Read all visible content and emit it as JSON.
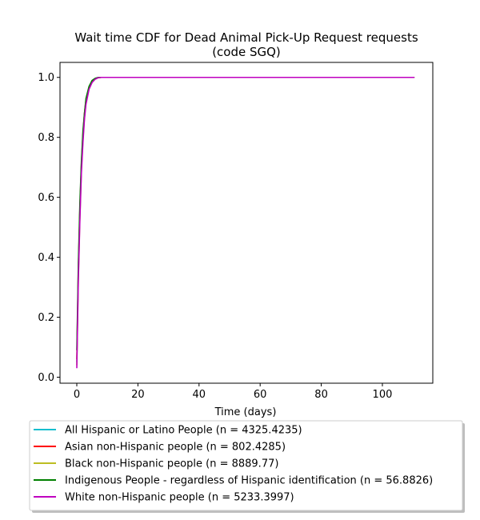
{
  "chart_data": {
    "type": "line",
    "title_line1": "Wait time CDF for Dead Animal Pick-Up Request  requests",
    "title_line2": "(code SGQ)",
    "xlabel": "Time (days)",
    "ylabel": "",
    "xlim": [
      -5.5,
      116.5
    ],
    "ylim": [
      -0.02,
      1.05
    ],
    "xticks": [
      0,
      20,
      40,
      60,
      80,
      100
    ],
    "yticks": [
      0.0,
      0.2,
      0.4,
      0.6,
      0.8,
      1.0
    ],
    "grid": false,
    "legend_position": "below",
    "series": [
      {
        "name": "All Hispanic or Latino People (n = 4325.4235)",
        "color": "#17becf",
        "x": [
          0,
          0.5,
          1,
          1.5,
          2,
          2.5,
          3,
          4,
          5,
          6,
          7,
          8,
          10,
          15,
          30,
          60,
          110.5
        ],
        "y": [
          0.05,
          0.35,
          0.55,
          0.7,
          0.8,
          0.87,
          0.92,
          0.965,
          0.985,
          0.995,
          0.999,
          1.0,
          1.0,
          1.0,
          1.0,
          1.0,
          1.0
        ]
      },
      {
        "name": "Asian non-Hispanic people (n = 802.4285)",
        "color": "#ff0000",
        "x": [
          0,
          0.5,
          1,
          1.5,
          2,
          2.5,
          3,
          4,
          5,
          6,
          7,
          8,
          10,
          15,
          30,
          60,
          110.5
        ],
        "y": [
          0.06,
          0.36,
          0.56,
          0.71,
          0.81,
          0.88,
          0.925,
          0.968,
          0.987,
          0.996,
          0.999,
          1.0,
          1.0,
          1.0,
          1.0,
          1.0,
          1.0
        ]
      },
      {
        "name": "Black non-Hispanic people (n = 8889.77)",
        "color": "#bcbd22",
        "x": [
          0,
          0.5,
          1,
          1.5,
          2,
          2.5,
          3,
          4,
          5,
          6,
          7,
          8,
          10,
          15,
          30,
          60,
          110.5
        ],
        "y": [
          0.04,
          0.33,
          0.53,
          0.69,
          0.79,
          0.865,
          0.915,
          0.962,
          0.984,
          0.994,
          0.999,
          1.0,
          1.0,
          1.0,
          1.0,
          1.0,
          1.0
        ]
      },
      {
        "name": "Indigenous People - regardless of Hispanic identification (n = 56.8826)",
        "color": "#008000",
        "x": [
          0,
          0.5,
          1,
          1.5,
          2,
          2.5,
          3,
          4,
          5,
          6,
          7,
          8,
          10,
          15,
          30,
          60,
          110.5
        ],
        "y": [
          0.09,
          0.38,
          0.58,
          0.72,
          0.82,
          0.88,
          0.93,
          0.97,
          0.99,
          0.997,
          1.0,
          1.0,
          1.0,
          1.0,
          1.0,
          1.0,
          1.0
        ]
      },
      {
        "name": "White non-Hispanic people (n = 5233.3997)",
        "color": "#bf00bf",
        "x": [
          0,
          0.5,
          1,
          1.5,
          2,
          2.5,
          3,
          4,
          5,
          6,
          7,
          8,
          10,
          15,
          30,
          60,
          110.5
        ],
        "y": [
          0.03,
          0.32,
          0.52,
          0.68,
          0.78,
          0.86,
          0.91,
          0.96,
          0.983,
          0.994,
          0.999,
          1.0,
          1.0,
          1.0,
          1.0,
          1.0,
          1.0
        ]
      }
    ]
  }
}
